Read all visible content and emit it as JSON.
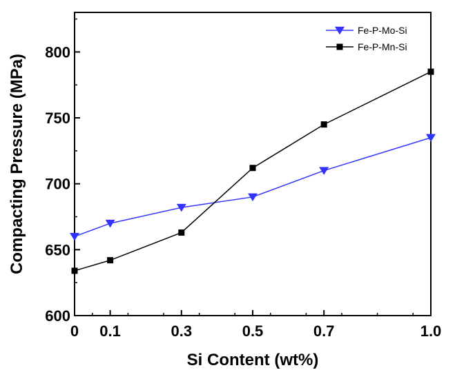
{
  "chart_data": {
    "type": "line",
    "xlabel": "Si Content (wt%)",
    "ylabel": "Compacting Pressure (MPa)",
    "xlim": [
      0,
      1.0
    ],
    "ylim": [
      600,
      830
    ],
    "x_ticks": [
      0,
      0.1,
      0.3,
      0.5,
      0.7,
      1.0
    ],
    "x_tick_labels": [
      "0",
      "0.1",
      "0.3",
      "0.5",
      "0.7",
      "1.0"
    ],
    "y_ticks": [
      600,
      650,
      700,
      750,
      800
    ],
    "y_tick_labels": [
      "600",
      "650",
      "700",
      "750",
      "800"
    ],
    "grid": false,
    "legend_position": "top-right",
    "series": [
      {
        "name": "Fe-P-Mo-Si",
        "color": "#3333ff",
        "marker": "triangle-down",
        "x": [
          0,
          0.1,
          0.3,
          0.5,
          0.7,
          1.0
        ],
        "y": [
          660,
          670,
          682,
          690,
          710,
          735
        ]
      },
      {
        "name": "Fe-P-Mn-Si",
        "color": "#000000",
        "marker": "square",
        "x": [
          0,
          0.1,
          0.3,
          0.5,
          0.7,
          1.0
        ],
        "y": [
          634,
          642,
          663,
          712,
          745,
          785
        ]
      }
    ]
  }
}
